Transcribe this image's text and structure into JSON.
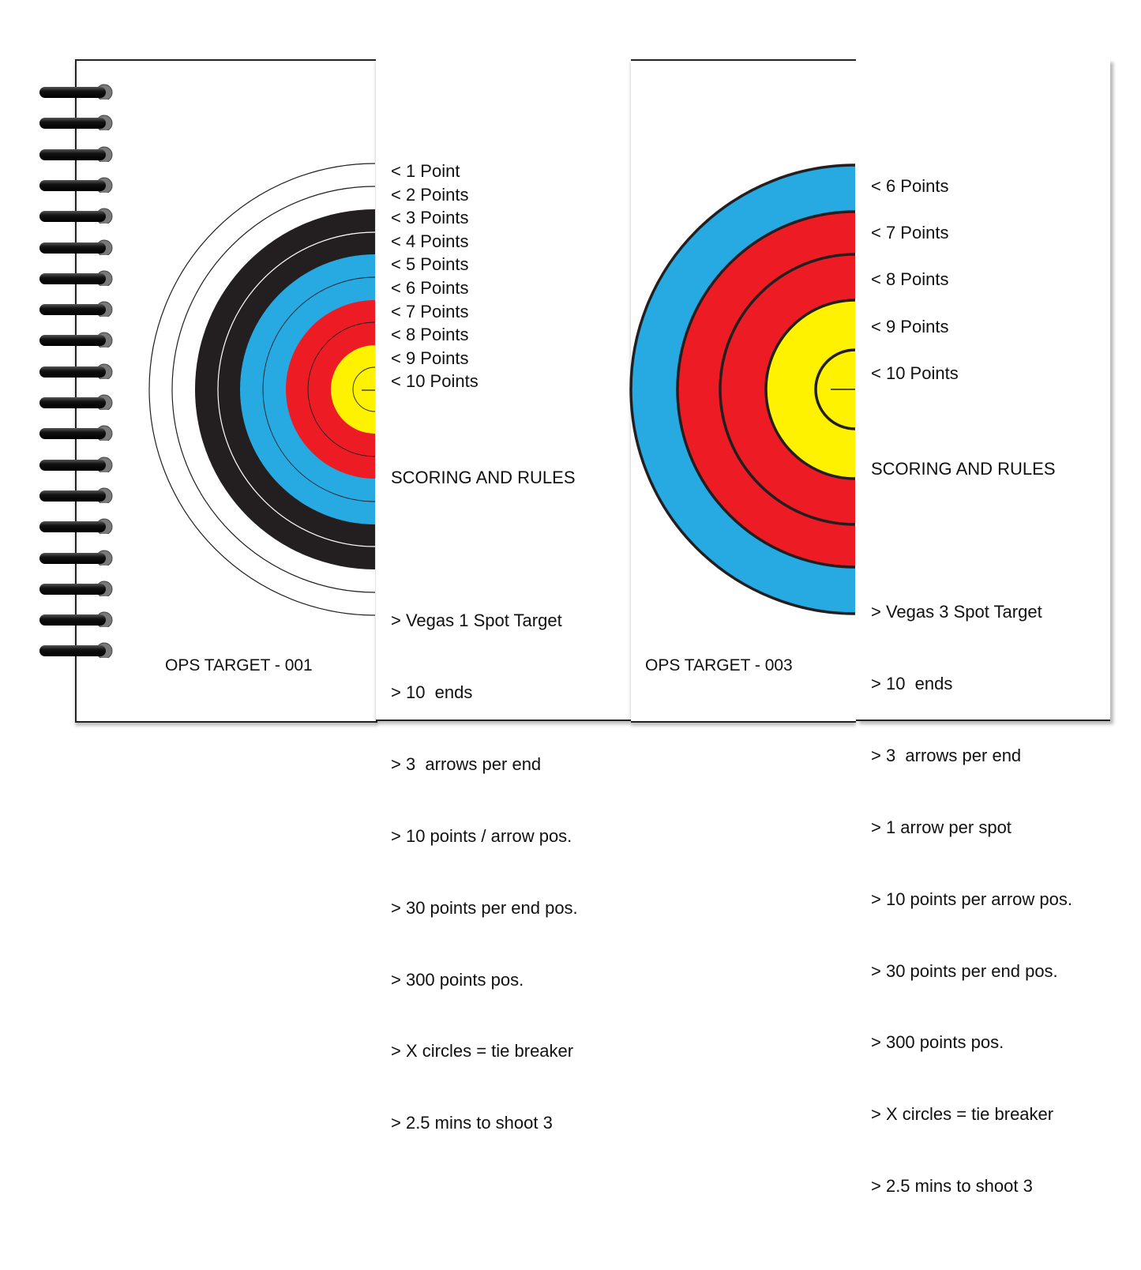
{
  "colors": {
    "black_ring": "#231f20",
    "blue_ring": "#27a9e1",
    "red_ring": "#ed1c24",
    "yellow_ring": "#fff200",
    "outline": "#231f20",
    "text": "#111111"
  },
  "spiral_binding": {
    "ring_count": 19
  },
  "left_card": {
    "caption": "OPS TARGET - 001",
    "target_type": "full-color 10-ring half target",
    "ring_labels": [
      "< 1 Point",
      "< 2 Points",
      "< 3 Points",
      "< 4 Points",
      "< 5 Points",
      "< 6 Points",
      "< 7 Points",
      "< 8 Points",
      "< 9 Points",
      "< 10 Points"
    ],
    "rules": {
      "heading": "SCORING AND RULES",
      "items": [
        "> Vegas 1 Spot Target",
        "> 10  ends",
        "> 3  arrows per end",
        "> 10 points / arrow pos.",
        "> 30 points per end pos.",
        "> 300 points pos.",
        "> X circles = tie breaker",
        "> 2.5 mins to shoot 3"
      ]
    }
  },
  "right_card": {
    "caption": "OPS TARGET - 003",
    "target_type": "3-spot half target (6–10 rings)",
    "ring_labels": [
      "< 6 Points",
      "< 7 Points",
      "< 8 Points",
      "< 9 Points",
      "< 10 Points"
    ],
    "rules": {
      "heading": "SCORING AND RULES",
      "items": [
        "> Vegas 3 Spot Target",
        "> 10  ends",
        "> 3  arrows per end",
        "> 1 arrow per spot",
        "> 10 points per arrow pos.",
        "> 30 points per end pos.",
        "> 300 points pos.",
        "> X circles = tie breaker",
        "> 2.5 mins to shoot 3"
      ]
    }
  }
}
